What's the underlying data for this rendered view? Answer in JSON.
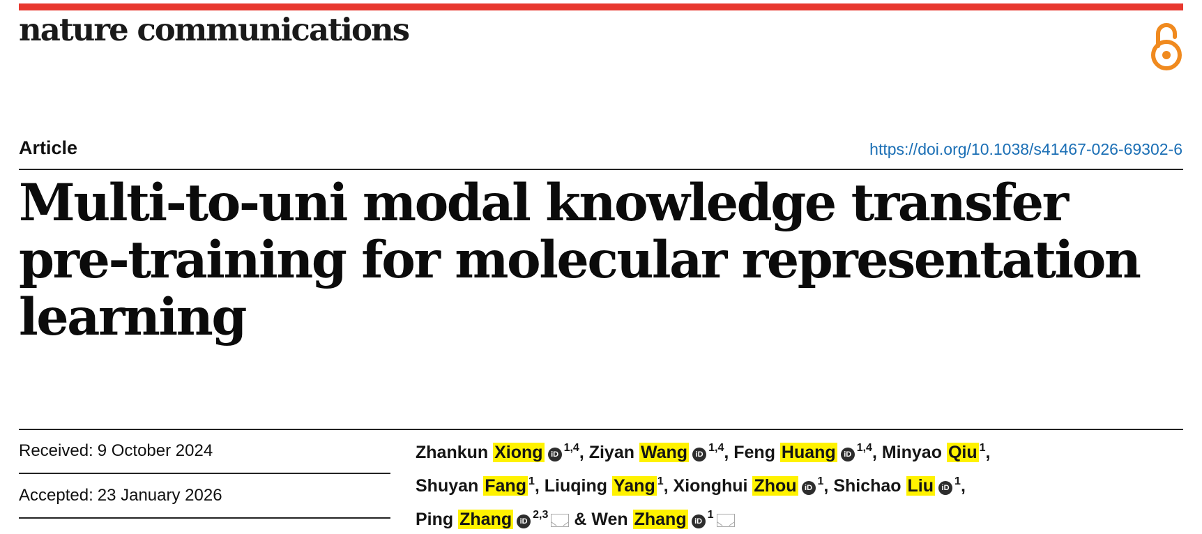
{
  "header": {
    "journal_name": "nature communications",
    "open_access_icon": "open-access-lock-icon",
    "accent_color": "#e8382f",
    "oa_color": "#f08a1f"
  },
  "article": {
    "type": "Article",
    "doi": "https://doi.org/10.1038/s41467-026-69302-6",
    "title": "Multi-to-uni modal knowledge transfer pre-training for molecular representation learning"
  },
  "dates": {
    "received_label": "Received:",
    "received_value": "9 October 2024",
    "accepted_label": "Accepted:",
    "accepted_value": "23 January 2026"
  },
  "authors": [
    {
      "given": "Zhankun",
      "family": "Xiong",
      "orcid": true,
      "aff": "1,4",
      "sep": ","
    },
    {
      "given": "Ziyan",
      "family": "Wang",
      "orcid": true,
      "aff": "1,4",
      "sep": ","
    },
    {
      "given": "Feng",
      "family": "Huang",
      "orcid": true,
      "aff": "1,4",
      "sep": ","
    },
    {
      "given": "Minyao",
      "family": "Qiu",
      "orcid": false,
      "aff": "1",
      "sep": ","
    },
    {
      "given": "Shuyan",
      "family": "Fang",
      "orcid": false,
      "aff": "1",
      "sep": ","
    },
    {
      "given": "Liuqing",
      "family": "Yang",
      "orcid": false,
      "aff": "1",
      "sep": ","
    },
    {
      "given": "Xionghui",
      "family": "Zhou",
      "orcid": true,
      "aff": "1",
      "sep": ","
    },
    {
      "given": "Shichao",
      "family": "Liu",
      "orcid": true,
      "aff": "1",
      "sep": ","
    },
    {
      "given": "Ping",
      "family": "Zhang",
      "orcid": true,
      "aff": "2,3",
      "sep": "",
      "mail": true
    },
    {
      "given": "Wen",
      "family": "Zhang",
      "orcid": true,
      "aff": "1",
      "sep": "",
      "mail": true,
      "prefix": "& "
    }
  ],
  "orcid_glyph": "iD",
  "highlight_color": "#fff200"
}
